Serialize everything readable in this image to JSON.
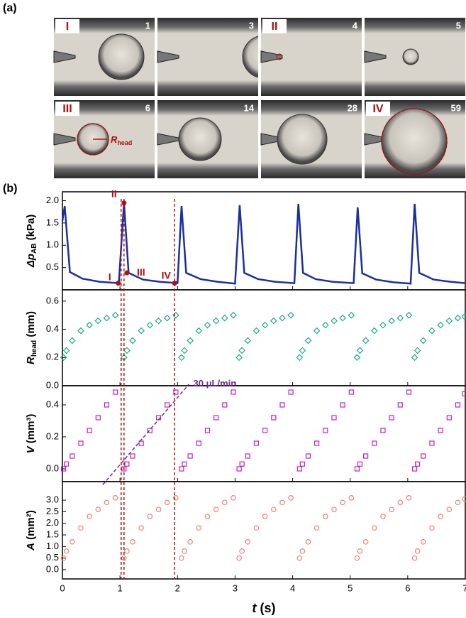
{
  "panel_a": {
    "label": "(a)",
    "tiles": [
      {
        "roman": "I",
        "frame": "1"
      },
      {
        "frame": "3"
      },
      {
        "roman": "II",
        "frame": "4"
      },
      {
        "frame": "5"
      },
      {
        "roman": "III",
        "frame": "6"
      },
      {
        "frame": "14"
      },
      {
        "frame": "28"
      },
      {
        "roman": "IV",
        "frame": "59"
      }
    ],
    "annotation": {
      "symbol": "R",
      "sub": "head"
    }
  },
  "panel_b_label": "(b)",
  "chart_data": [
    {
      "type": "line",
      "ylabel": {
        "symbol": "Δp",
        "sub": "AB",
        "unit": " (kPa)"
      },
      "color": "#1a2fa0",
      "ylim": [
        0,
        2.2
      ],
      "yticks": [
        0.5,
        {
          "value": 1.0,
          "label": "1.0"
        },
        1.5,
        {
          "value": 2.0,
          "label": "2.0"
        }
      ],
      "xlim": [
        0,
        7
      ],
      "x": [
        0,
        0.04,
        0.13,
        0.35,
        0.65,
        0.98,
        1.07,
        1.15,
        1.4,
        1.7,
        2.0,
        2.07,
        2.15,
        2.4,
        2.7,
        3.0,
        3.08,
        3.16,
        3.4,
        3.7,
        4.03,
        4.1,
        4.18,
        4.4,
        4.7,
        5.06,
        5.13,
        5.21,
        5.45,
        5.75,
        6.05,
        6.12,
        6.2,
        6.45,
        6.75,
        7.0
      ],
      "values": [
        1.55,
        1.88,
        0.4,
        0.25,
        0.18,
        0.15,
        1.95,
        0.38,
        0.23,
        0.18,
        0.15,
        1.88,
        0.38,
        0.24,
        0.18,
        0.14,
        1.9,
        0.38,
        0.24,
        0.18,
        0.15,
        1.93,
        0.38,
        0.24,
        0.18,
        0.15,
        1.85,
        0.37,
        0.23,
        0.17,
        0.14,
        1.93,
        0.38,
        0.23,
        0.18,
        0.15
      ],
      "points": [
        {
          "label": "I",
          "x": 0.97,
          "y": 0.15
        },
        {
          "label": "II",
          "x": 1.07,
          "y": 1.95
        },
        {
          "label": "III",
          "x": 1.12,
          "y": 0.38
        },
        {
          "label": "IV",
          "x": 1.95,
          "y": 0.15
        }
      ],
      "guides": [
        1.02,
        1.07,
        1.95
      ],
      "guide_color": "#b01010"
    },
    {
      "type": "scatter",
      "marker": "diamond",
      "ylabel": {
        "symbol": "R",
        "sub": "head",
        "unit": " (mm)"
      },
      "color": "#1aaa8a",
      "ylim": [
        0,
        0.68
      ],
      "yticks": [
        {
          "value": 0,
          "label": "0.0"
        },
        0.2,
        0.4,
        0.6
      ],
      "xlim": [
        0,
        7
      ],
      "x": [
        0.02,
        0.07,
        0.17,
        0.32,
        0.47,
        0.62,
        0.77,
        0.92,
        1.07,
        1.12,
        1.22,
        1.37,
        1.52,
        1.67,
        1.82,
        1.97,
        2.07,
        2.12,
        2.22,
        2.37,
        2.52,
        2.67,
        2.82,
        2.97,
        3.07,
        3.12,
        3.22,
        3.37,
        3.52,
        3.67,
        3.82,
        3.97,
        4.12,
        4.17,
        4.27,
        4.42,
        4.57,
        4.72,
        4.87,
        5.02,
        5.12,
        5.17,
        5.27,
        5.42,
        5.57,
        5.72,
        5.87,
        6.02,
        6.12,
        6.17,
        6.27,
        6.42,
        6.57,
        6.72,
        6.87,
        6.99
      ],
      "values": [
        0.2,
        0.25,
        0.32,
        0.39,
        0.43,
        0.46,
        0.48,
        0.5,
        0.2,
        0.25,
        0.32,
        0.39,
        0.43,
        0.46,
        0.48,
        0.5,
        0.2,
        0.25,
        0.32,
        0.39,
        0.43,
        0.46,
        0.48,
        0.5,
        0.2,
        0.25,
        0.32,
        0.39,
        0.43,
        0.46,
        0.48,
        0.5,
        0.2,
        0.25,
        0.32,
        0.39,
        0.43,
        0.46,
        0.48,
        0.5,
        0.2,
        0.25,
        0.32,
        0.39,
        0.43,
        0.46,
        0.48,
        0.5,
        0.2,
        0.25,
        0.32,
        0.39,
        0.43,
        0.46,
        0.48,
        0.49
      ]
    },
    {
      "type": "scatter",
      "marker": "square",
      "ylabel": {
        "symbol": "V",
        "unit": " (mm³)"
      },
      "color": "#c020c0",
      "ylim": [
        -0.08,
        0.52
      ],
      "yticks": [
        {
          "value": 0,
          "label": "0.0"
        },
        0.2,
        0.4
      ],
      "xlim": [
        0,
        7
      ],
      "x": [
        0.02,
        0.07,
        0.17,
        0.32,
        0.47,
        0.62,
        0.77,
        0.92,
        1.07,
        1.12,
        1.22,
        1.37,
        1.52,
        1.67,
        1.82,
        1.97,
        2.07,
        2.12,
        2.22,
        2.37,
        2.52,
        2.67,
        2.82,
        2.97,
        3.07,
        3.12,
        3.22,
        3.37,
        3.52,
        3.67,
        3.82,
        3.97,
        4.12,
        4.17,
        4.27,
        4.42,
        4.57,
        4.72,
        4.87,
        5.02,
        5.12,
        5.17,
        5.27,
        5.42,
        5.57,
        5.72,
        5.87,
        6.02,
        6.12,
        6.17,
        6.27,
        6.42,
        6.57,
        6.72,
        6.87,
        6.99
      ],
      "values": [
        0,
        0.03,
        0.08,
        0.16,
        0.24,
        0.32,
        0.4,
        0.48,
        0,
        0.03,
        0.08,
        0.16,
        0.24,
        0.32,
        0.4,
        0.48,
        0,
        0.03,
        0.08,
        0.16,
        0.24,
        0.32,
        0.4,
        0.48,
        0,
        0.03,
        0.08,
        0.16,
        0.24,
        0.32,
        0.4,
        0.48,
        0,
        0.03,
        0.08,
        0.16,
        0.24,
        0.32,
        0.4,
        0.48,
        0,
        0.03,
        0.08,
        0.16,
        0.24,
        0.32,
        0.4,
        0.48,
        0,
        0.03,
        0.08,
        0.16,
        0.24,
        0.32,
        0.4,
        0.47
      ],
      "fit": {
        "label": "30 μL/min",
        "x": [
          0.7,
          2.2
        ],
        "y": [
          -0.1,
          0.53
        ],
        "color": "#6a2a8a"
      }
    },
    {
      "type": "scatter",
      "marker": "circle",
      "ylabel": {
        "symbol": "A",
        "unit": " (mm²)"
      },
      "color": "#f08070",
      "ylim": [
        -0.4,
        3.8
      ],
      "yticks": [
        {
          "value": 0,
          "label": "0.0"
        },
        {
          "value": 0.5,
          "label": "0.5"
        },
        {
          "value": 1,
          "label": "1.0"
        },
        {
          "value": 1.5,
          "label": "1.5"
        },
        {
          "value": 2,
          "label": "2.0"
        },
        {
          "value": 2.5,
          "label": "2.5"
        },
        {
          "value": 3,
          "label": "3.0"
        }
      ],
      "xlim": [
        0,
        7
      ],
      "xticks": [
        0,
        1,
        2,
        3,
        4,
        5,
        6,
        7
      ],
      "xlabel": {
        "symbol": "t",
        "unit": " (s)"
      },
      "x": [
        0.02,
        0.07,
        0.17,
        0.32,
        0.47,
        0.62,
        0.77,
        0.92,
        1.07,
        1.12,
        1.22,
        1.37,
        1.52,
        1.67,
        1.82,
        1.97,
        2.07,
        2.12,
        2.22,
        2.37,
        2.52,
        2.67,
        2.82,
        2.97,
        3.07,
        3.12,
        3.22,
        3.37,
        3.52,
        3.67,
        3.82,
        3.97,
        4.12,
        4.17,
        4.27,
        4.42,
        4.57,
        4.72,
        4.87,
        5.02,
        5.12,
        5.17,
        5.27,
        5.42,
        5.57,
        5.72,
        5.87,
        6.02,
        6.12,
        6.17,
        6.27,
        6.42,
        6.57,
        6.72,
        6.87,
        6.99
      ],
      "values": [
        0.5,
        0.8,
        1.2,
        1.8,
        2.3,
        2.6,
        2.9,
        3.1,
        0.5,
        0.8,
        1.2,
        1.8,
        2.3,
        2.6,
        2.9,
        3.1,
        0.5,
        0.8,
        1.2,
        1.8,
        2.3,
        2.6,
        2.9,
        3.1,
        0.5,
        0.8,
        1.2,
        1.8,
        2.3,
        2.6,
        2.9,
        3.1,
        0.5,
        0.8,
        1.2,
        1.8,
        2.3,
        2.6,
        2.9,
        3.1,
        0.5,
        0.8,
        1.2,
        1.8,
        2.3,
        2.6,
        2.9,
        3.1,
        0.5,
        0.8,
        1.2,
        1.8,
        2.3,
        2.6,
        2.9,
        3.05
      ]
    }
  ]
}
